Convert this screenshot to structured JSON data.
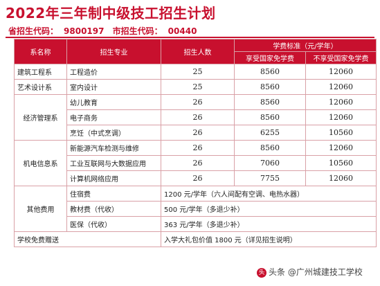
{
  "title": "2022年三年制中级技工招生计划",
  "codes": {
    "provincial_label": "省招生代码：",
    "provincial_code": "9800197",
    "city_label": "市招生代码：",
    "city_code": "00440"
  },
  "table": {
    "headers": {
      "dept": "系名称",
      "major": "招生专业",
      "count": "招生人数",
      "fee": "学费标准（元/学年）",
      "fee_free": "享受国家免学费",
      "fee_nonfree": "不享受国家免学费"
    },
    "rows": [
      {
        "dept": "建筑工程系",
        "major": "工程造价",
        "count": "25",
        "free": "8560",
        "nonfree": "12060"
      },
      {
        "dept": "艺术设计系",
        "major": "室内设计",
        "count": "25",
        "free": "8560",
        "nonfree": "12060"
      },
      {
        "dept": "经济管理系",
        "majors": [
          {
            "major": "幼儿教育",
            "count": "26",
            "free": "8560",
            "nonfree": "12060"
          },
          {
            "major": "电子商务",
            "count": "26",
            "free": "8560",
            "nonfree": "12060"
          },
          {
            "major": "烹饪（中式烹调）",
            "count": "26",
            "free": "6255",
            "nonfree": "10560"
          }
        ]
      },
      {
        "dept": "机电信息系",
        "majors": [
          {
            "major": "新能源汽车检测与维修",
            "count": "26",
            "free": "8560",
            "nonfree": "12060"
          },
          {
            "major": "工业互联网与大数据应用",
            "count": "26",
            "free": "7060",
            "nonfree": "10560"
          },
          {
            "major": "计算机网络应用",
            "count": "26",
            "free": "7755",
            "nonfree": "12060"
          }
        ]
      }
    ],
    "other": {
      "label": "其他费用",
      "items": [
        {
          "name": "住宿费",
          "value": "1200 元/学年（六人间配有空调、电热水器）"
        },
        {
          "name": "教材费（代收）",
          "value": "500 元/学年（多退少补）"
        },
        {
          "name": "医保（代收）",
          "value": "363 元/学年（多退少补）"
        }
      ]
    },
    "gift": {
      "label": "学校免费赠送",
      "value": "入学大礼包价值 1800 元（详见招生说明）"
    }
  },
  "watermark": {
    "logo": "头",
    "text": "头条 @广州城建技工学校"
  }
}
